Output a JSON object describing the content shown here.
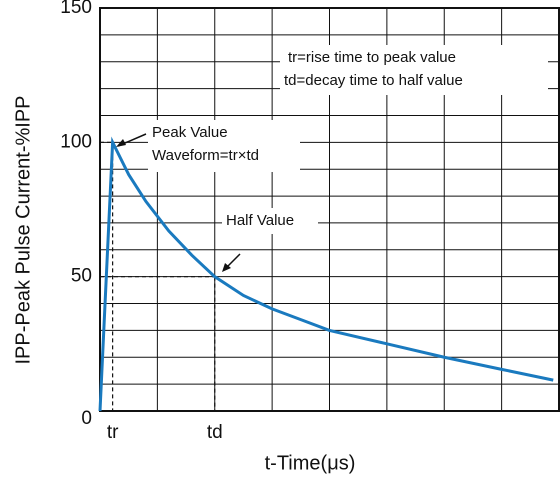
{
  "chart_data": {
    "type": "line",
    "xlabel": "t-Time(μs)",
    "ylabel": "IPP-Peak Pulse Current-%IPP",
    "xlim": [
      0,
      8
    ],
    "ylim": [
      0,
      150
    ],
    "yticks": [
      0,
      50,
      100,
      150
    ],
    "ygrid": [
      0,
      10,
      20,
      30,
      40,
      50,
      60,
      70,
      80,
      90,
      100,
      110,
      120,
      130,
      140,
      150
    ],
    "xgrid": [
      0,
      1,
      2,
      3,
      4,
      5,
      6,
      7,
      8
    ],
    "x_markers": [
      {
        "value": 0.22,
        "label": "tr"
      },
      {
        "value": 2.0,
        "label": "td"
      }
    ],
    "series": [
      {
        "name": "Waveform",
        "color": "#1a7abf",
        "x": [
          0,
          0.22,
          0.5,
          0.8,
          1.2,
          1.6,
          2.0,
          2.5,
          3,
          3.5,
          4,
          5,
          6,
          7,
          7.9
        ],
        "values": [
          0,
          100,
          88,
          78,
          67,
          58,
          50,
          43,
          38,
          34,
          30,
          25,
          20,
          15.5,
          11.5
        ]
      }
    ],
    "annotations": [
      "Peak Value",
      "Waveform=tr×td",
      "Half Value",
      "tr=rise time to peak value",
      "td=decay time to half value"
    ]
  }
}
